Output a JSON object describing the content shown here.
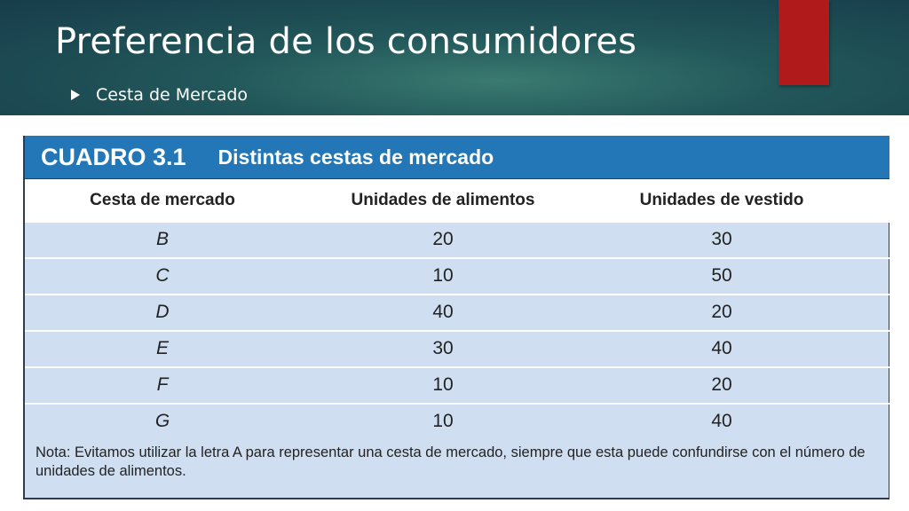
{
  "slide": {
    "title": "Preferencia de los consumidores",
    "bullet": "Cesta de Mercado"
  },
  "table": {
    "label": "CUADRO 3.1",
    "title": "Distintas cestas de mercado",
    "columns": [
      "Cesta de mercado",
      "Unidades de alimentos",
      "Unidades de vestido"
    ],
    "rows": [
      [
        "B",
        "20",
        "30"
      ],
      [
        "C",
        "10",
        "50"
      ],
      [
        "D",
        "40",
        "20"
      ],
      [
        "E",
        "30",
        "40"
      ],
      [
        "F",
        "10",
        "20"
      ],
      [
        "G",
        "10",
        "40"
      ]
    ],
    "note": "Nota: Evitamos utilizar la letra A para representar una cesta de mercado, siempre que esta puede confundirse con el número de unidades de alimentos."
  },
  "colors": {
    "header_blue": "#2377b7",
    "row_fill": "#cfdff1",
    "red_tab": "#b01a1a"
  }
}
